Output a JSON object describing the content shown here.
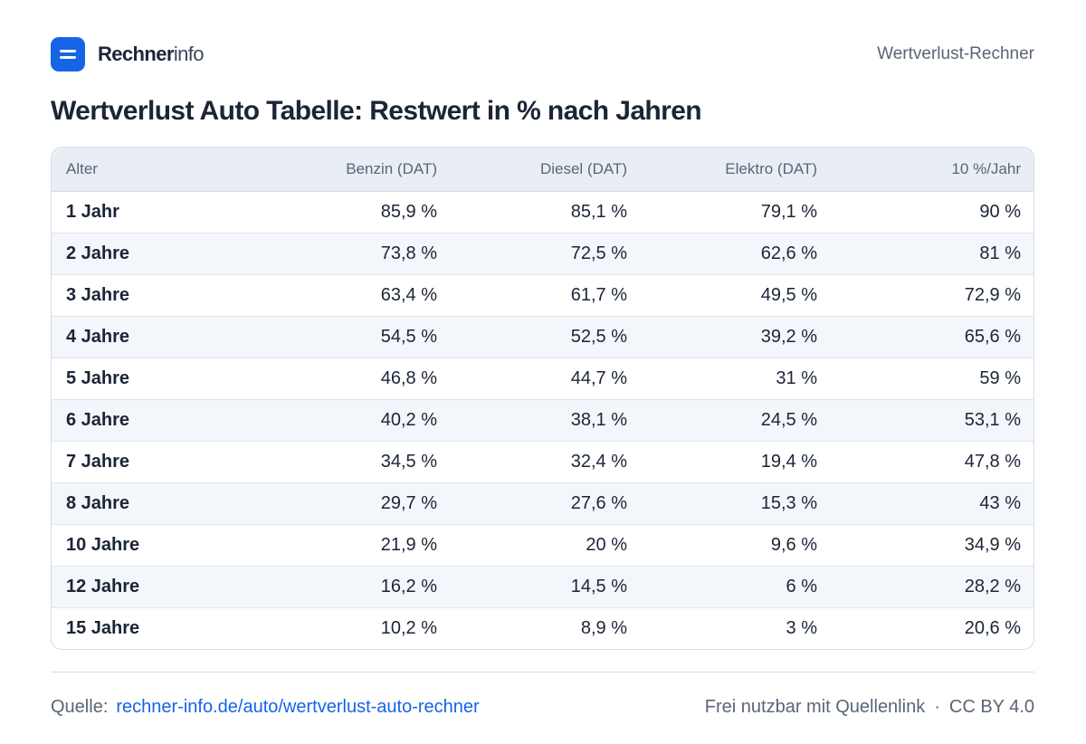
{
  "header": {
    "brand_strong": "Rechner",
    "brand_light": "info",
    "page_tag": "Wertverlust-Rechner"
  },
  "title": "Wertverlust Auto Tabelle: Restwert in % nach Jahren",
  "table": {
    "columns": [
      "Alter",
      "Benzin (DAT)",
      "Diesel (DAT)",
      "Elektro (DAT)",
      "10 %/Jahr"
    ],
    "rows": [
      [
        "1 Jahr",
        "85,9 %",
        "85,1 %",
        "79,1 %",
        "90 %"
      ],
      [
        "2 Jahre",
        "73,8 %",
        "72,5 %",
        "62,6 %",
        "81 %"
      ],
      [
        "3 Jahre",
        "63,4 %",
        "61,7 %",
        "49,5 %",
        "72,9 %"
      ],
      [
        "4 Jahre",
        "54,5 %",
        "52,5 %",
        "39,2 %",
        "65,6 %"
      ],
      [
        "5 Jahre",
        "46,8 %",
        "44,7 %",
        "31 %",
        "59 %"
      ],
      [
        "6 Jahre",
        "40,2 %",
        "38,1 %",
        "24,5 %",
        "53,1 %"
      ],
      [
        "7 Jahre",
        "34,5 %",
        "32,4 %",
        "19,4 %",
        "47,8 %"
      ],
      [
        "8 Jahre",
        "29,7 %",
        "27,6 %",
        "15,3 %",
        "43 %"
      ],
      [
        "10 Jahre",
        "21,9 %",
        "20 %",
        "9,6 %",
        "34,9 %"
      ],
      [
        "12 Jahre",
        "16,2 %",
        "14,5 %",
        "6 %",
        "28,2 %"
      ],
      [
        "15 Jahre",
        "10,2 %",
        "8,9 %",
        "3 %",
        "20,6 %"
      ]
    ]
  },
  "footer": {
    "source_label": "Quelle:",
    "source_link": "rechner-info.de/auto/wertverlust-auto-rechner",
    "license_text": "Frei nutzbar mit Quellenlink",
    "separator": "·",
    "license": "CC BY 4.0"
  },
  "colors": {
    "accent": "#1565e6",
    "text": "#1b2537",
    "muted": "#5a6577",
    "header_bg": "#e9eef5",
    "stripe_bg": "#f3f6fa",
    "border": "#d6dde7"
  },
  "icons": {
    "logo": "rechnerinfo-logo-icon"
  }
}
